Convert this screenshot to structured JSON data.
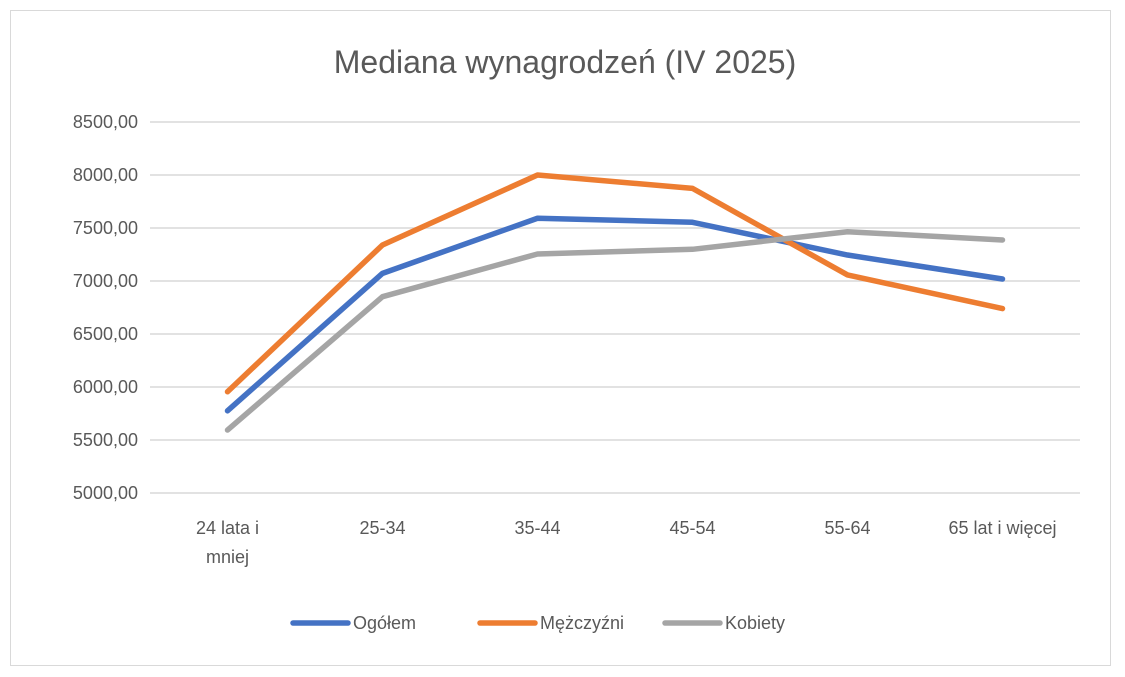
{
  "chart_data": {
    "type": "line",
    "title": "Mediana wynagrodzeń (IV 2025)",
    "xlabel": "",
    "ylabel": "",
    "categories": [
      [
        "24 lata i",
        "mniej"
      ],
      [
        "25-34"
      ],
      [
        "35-44"
      ],
      [
        "45-54"
      ],
      [
        "55-64"
      ],
      [
        "65 lat i więcej"
      ]
    ],
    "ylim": [
      5000,
      8500
    ],
    "yticks": [
      5000,
      5500,
      6000,
      6500,
      7000,
      7500,
      8000,
      8500
    ],
    "ytick_labels": [
      "5000,00",
      "5500,00",
      "6000,00",
      "6500,00",
      "7000,00",
      "7500,00",
      "8000,00",
      "8500,00"
    ],
    "grid": true,
    "legend_position": "bottom",
    "series": [
      {
        "name": "Ogółem",
        "color": "#4472c4",
        "values": [
          5775,
          7072,
          7592,
          7554,
          7245,
          7019
        ]
      },
      {
        "name": "Mężczyźni",
        "color": "#ed7d31",
        "values": [
          5955,
          7340,
          8000,
          7874,
          7057,
          6740
        ]
      },
      {
        "name": "Kobiety",
        "color": "#a5a5a5",
        "values": [
          5594,
          6852,
          7255,
          7299,
          7465,
          7387
        ]
      }
    ]
  }
}
